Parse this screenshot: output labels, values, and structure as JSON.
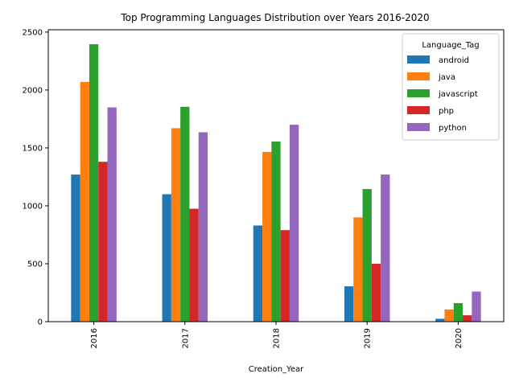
{
  "chart_data": {
    "type": "bar",
    "title": "Top Programming Languages Distribution over Years 2016-2020",
    "xlabel": "Creation_Year",
    "ylabel": "",
    "categories": [
      "2016",
      "2017",
      "2018",
      "2019",
      "2020"
    ],
    "series": [
      {
        "name": "android",
        "color": "#1f77b4",
        "values": [
          1270,
          1100,
          830,
          305,
          25
        ]
      },
      {
        "name": "java",
        "color": "#ff7f0e",
        "values": [
          2070,
          1670,
          1465,
          900,
          105
        ]
      },
      {
        "name": "javascript",
        "color": "#2ca02c",
        "values": [
          2395,
          1855,
          1555,
          1145,
          160
        ]
      },
      {
        "name": "php",
        "color": "#d62728",
        "values": [
          1380,
          975,
          790,
          500,
          55
        ]
      },
      {
        "name": "python",
        "color": "#9467bd",
        "values": [
          1850,
          1635,
          1700,
          1270,
          260
        ]
      }
    ],
    "ylim": [
      0,
      2520
    ],
    "yticks": [
      0,
      500,
      1000,
      1500,
      2000,
      2500
    ],
    "legend": {
      "title": "Language_Tag",
      "position": "top-right"
    },
    "grid": false
  }
}
